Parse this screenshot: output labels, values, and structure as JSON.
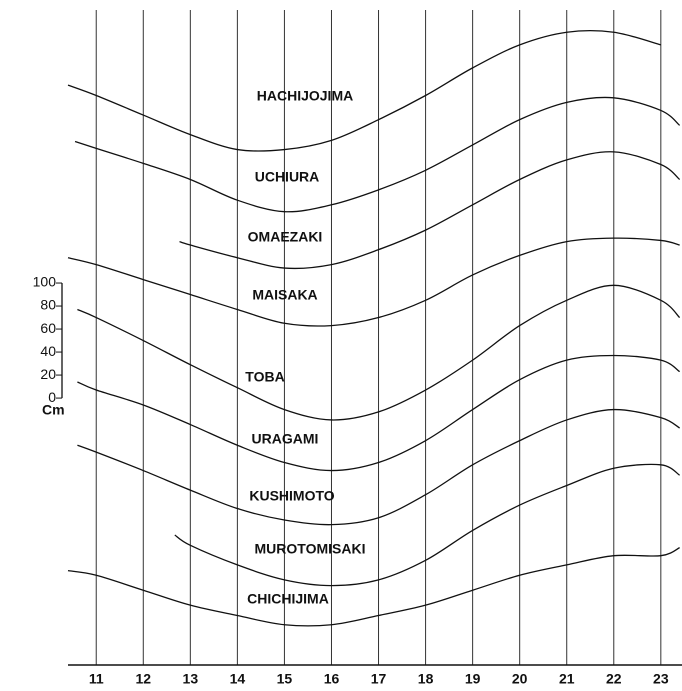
{
  "chart_data": {
    "type": "line",
    "x_unit_ticks": true,
    "xlim": [
      10.4,
      23.45
    ],
    "xticks": [
      11,
      12,
      13,
      14,
      15,
      16,
      17,
      18,
      19,
      20,
      21,
      22,
      23
    ],
    "ylim": [
      -232,
      346
    ],
    "scale_ticks": [
      0,
      20,
      40,
      60,
      80,
      100
    ],
    "unit": "Cm",
    "grid": true,
    "series": [
      {
        "name": "HACHIJOJIMA",
        "color": "#111111",
        "x": [
          10.4,
          11,
          12,
          13,
          14,
          15,
          16,
          17,
          18,
          19,
          20,
          21,
          22,
          23
        ],
        "values": [
          272,
          263,
          246,
          229,
          216,
          216,
          224,
          242,
          263,
          287,
          307,
          318,
          318,
          307
        ]
      },
      {
        "name": "UCHIURA",
        "color": "#111111",
        "x": [
          10.55,
          11,
          12,
          13,
          14,
          15,
          16,
          17,
          18,
          19,
          20,
          21,
          22,
          23,
          23.4
        ],
        "values": [
          223,
          217,
          204,
          190,
          172,
          162,
          168,
          181,
          198,
          220,
          242,
          257,
          261,
          250,
          237
        ]
      },
      {
        "name": "OMAEZAKI",
        "color": "#111111",
        "x": [
          12.77,
          13,
          14,
          15,
          16,
          17,
          18,
          19,
          20,
          21,
          22,
          23,
          23.4
        ],
        "values": [
          136,
          133,
          122,
          113,
          116,
          129,
          146,
          168,
          190,
          207,
          214,
          203,
          190
        ]
      },
      {
        "name": "MAISAKA",
        "color": "#111111",
        "x": [
          10.4,
          11,
          12,
          13,
          14,
          15,
          16,
          17,
          18,
          19,
          20,
          21,
          22,
          23,
          23.4
        ],
        "values": [
          122,
          116,
          103,
          90,
          77,
          65,
          63,
          70,
          85,
          107,
          124,
          136,
          139,
          137,
          133
        ]
      },
      {
        "name": "TOBA",
        "color": "#111111",
        "x": [
          10.6,
          11,
          12,
          13,
          14,
          15,
          16,
          17,
          18,
          19,
          20,
          21,
          22,
          23,
          23.4
        ],
        "values": [
          77,
          70,
          50,
          29,
          9,
          -10,
          -19,
          -12,
          7,
          33,
          63,
          85,
          98,
          85,
          70
        ]
      },
      {
        "name": "URAGAMI",
        "color": "#111111",
        "x": [
          10.6,
          11,
          12,
          13,
          14,
          15,
          16,
          17,
          18,
          19,
          20,
          21,
          22,
          23,
          23.4
        ],
        "values": [
          14,
          7,
          -6,
          -23,
          -41,
          -56,
          -63,
          -56,
          -37,
          -10,
          16,
          33,
          37,
          33,
          23
        ]
      },
      {
        "name": "KUSHIMOTO",
        "color": "#111111",
        "x": [
          10.6,
          11,
          12,
          13,
          14,
          15,
          16,
          17,
          18,
          19,
          20,
          21,
          22,
          23,
          23.4
        ],
        "values": [
          -41,
          -47,
          -63,
          -80,
          -96,
          -106,
          -110,
          -104,
          -84,
          -58,
          -37,
          -19,
          -10,
          -17,
          -26
        ]
      },
      {
        "name": "MUROTOMISAKI",
        "color": "#111111",
        "x": [
          12.67,
          13,
          14,
          15,
          16,
          17,
          18,
          19,
          20,
          21,
          22,
          23,
          23.4
        ],
        "values": [
          -119,
          -128,
          -145,
          -158,
          -163,
          -158,
          -141,
          -115,
          -93,
          -76,
          -61,
          -58,
          -67
        ]
      },
      {
        "name": "CHICHIJIMA",
        "color": "#111111",
        "x": [
          10.4,
          11,
          12,
          13,
          14,
          15,
          16,
          17,
          18,
          19,
          20,
          21,
          22,
          23,
          23.4
        ],
        "values": [
          -150,
          -154,
          -167,
          -180,
          -189,
          -197,
          -197,
          -189,
          -180,
          -167,
          -154,
          -145,
          -137,
          -137,
          -130
        ]
      }
    ]
  }
}
